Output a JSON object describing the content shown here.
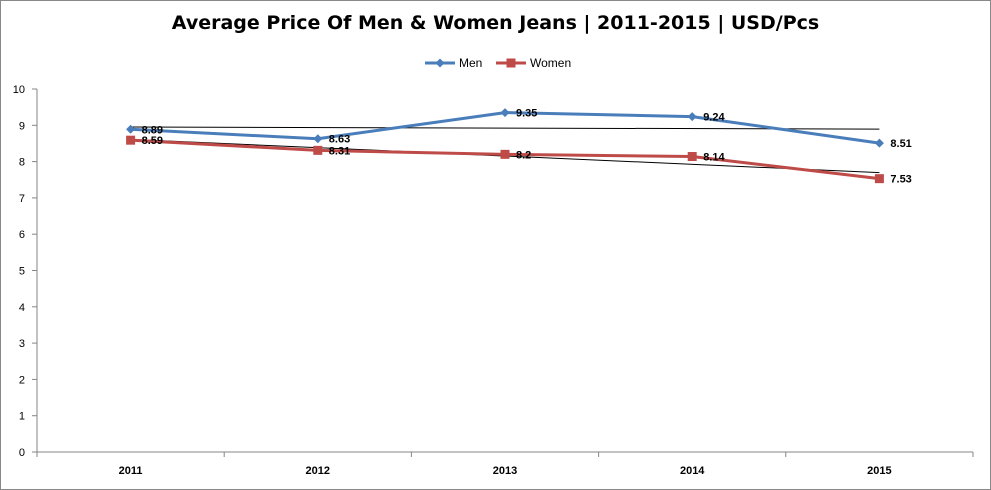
{
  "chart_data": {
    "type": "line",
    "title": "Average Price Of Men & Women Jeans | 2011-2015 | USD/Pcs",
    "categories": [
      "2011",
      "2012",
      "2013",
      "2014",
      "2015"
    ],
    "ylim": [
      0,
      10
    ],
    "yticks": [
      0,
      1,
      2,
      3,
      4,
      5,
      6,
      7,
      8,
      9,
      10
    ],
    "grid": false,
    "legend_position": "top",
    "series": [
      {
        "name": "Men",
        "values": [
          8.89,
          8.63,
          9.35,
          9.24,
          8.51
        ],
        "labels": [
          "8.89",
          "8.63",
          "9.35",
          "9.24",
          "8.51"
        ],
        "color": "#4a7ebb",
        "marker": "diamond"
      },
      {
        "name": "Women",
        "values": [
          8.59,
          8.31,
          8.2,
          8.14,
          7.53
        ],
        "labels": [
          "8.59",
          "8.31",
          "8.2",
          "8.14",
          "7.53"
        ],
        "color": "#be4b48",
        "marker": "square"
      }
    ],
    "trendlines": [
      {
        "series": "Men",
        "color": "#000000"
      },
      {
        "series": "Women",
        "color": "#000000"
      }
    ]
  }
}
